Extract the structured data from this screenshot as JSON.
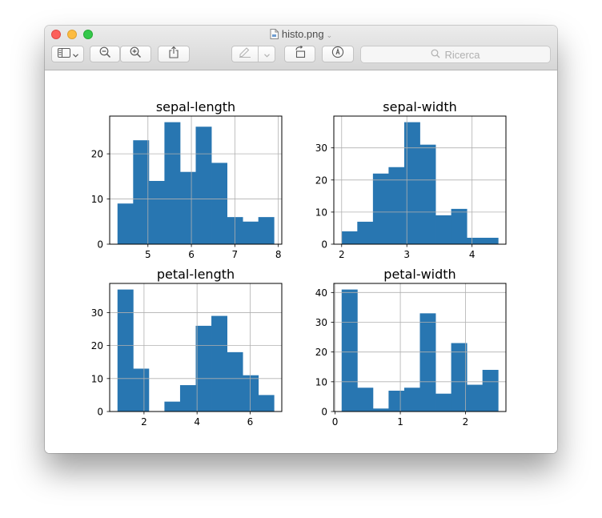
{
  "window": {
    "title": "histo.png"
  },
  "toolbar": {
    "search_placeholder": "Ricerca",
    "icons": [
      "sidebar-icon",
      "zoom-out-icon",
      "zoom-in-icon",
      "share-icon",
      "markup-pen-icon",
      "rotate-icon",
      "annotate-icon",
      "search-icon"
    ]
  },
  "colors": {
    "bar": "#2876b1",
    "grid": "#b0b0b0",
    "close": "#fc605b",
    "minimize": "#fdbc40",
    "maximize": "#34c84a"
  },
  "chart_data": [
    {
      "type": "bar",
      "title": "sepal-length",
      "x_ticks": [
        "5",
        "6",
        "7",
        "8"
      ],
      "y_ticks": [
        "0",
        "10",
        "20"
      ],
      "xlim": [
        4.12,
        8.08
      ],
      "ylim": [
        0,
        28.35
      ],
      "bin_edges": [
        4.3,
        4.66,
        5.02,
        5.38,
        5.74,
        6.1,
        6.46,
        6.82,
        7.18,
        7.54,
        7.9
      ],
      "values": [
        9,
        23,
        14,
        27,
        16,
        26,
        18,
        6,
        5,
        6
      ],
      "grid": true
    },
    {
      "type": "bar",
      "title": "sepal-width",
      "x_ticks": [
        "2",
        "3",
        "4"
      ],
      "y_ticks": [
        "0",
        "10",
        "20",
        "30"
      ],
      "xlim": [
        1.88,
        4.52
      ],
      "ylim": [
        0,
        39.9
      ],
      "bin_edges": [
        2.0,
        2.24,
        2.48,
        2.72,
        2.96,
        3.2,
        3.44,
        3.68,
        3.92,
        4.16,
        4.4
      ],
      "values": [
        4,
        7,
        22,
        24,
        38,
        31,
        9,
        11,
        2,
        2
      ],
      "grid": true
    },
    {
      "type": "bar",
      "title": "petal-length",
      "x_ticks": [
        "2",
        "4",
        "6"
      ],
      "y_ticks": [
        "0",
        "10",
        "20",
        "30"
      ],
      "xlim": [
        0.705,
        7.195
      ],
      "ylim": [
        0,
        38.85
      ],
      "bin_edges": [
        1.0,
        1.59,
        2.18,
        2.77,
        3.36,
        3.95,
        4.54,
        5.13,
        5.72,
        6.31,
        6.9
      ],
      "values": [
        37,
        13,
        0,
        3,
        8,
        26,
        29,
        18,
        11,
        5
      ],
      "grid": true
    },
    {
      "type": "bar",
      "title": "petal-width",
      "x_ticks": [
        "0",
        "1",
        "2"
      ],
      "y_ticks": [
        "0",
        "10",
        "20",
        "30",
        "40"
      ],
      "xlim": [
        -0.02,
        2.62
      ],
      "ylim": [
        0,
        43.05
      ],
      "bin_edges": [
        0.1,
        0.34,
        0.58,
        0.82,
        1.06,
        1.3,
        1.54,
        1.78,
        2.02,
        2.26,
        2.5
      ],
      "values": [
        41,
        8,
        1,
        7,
        8,
        33,
        6,
        23,
        9,
        14
      ],
      "grid": true
    }
  ]
}
